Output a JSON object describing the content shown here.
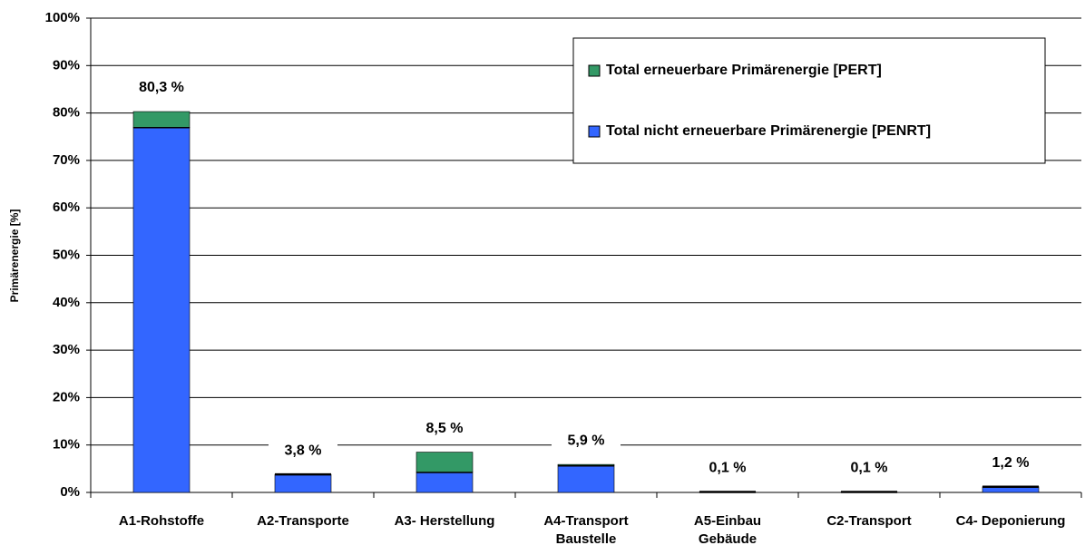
{
  "chart_data": {
    "type": "stacked_bar",
    "y_axis_label": "Primärenergie [%]",
    "categories": [
      "A1-Rohstoffe",
      "A2-Transporte",
      "A3- Herstellung",
      "A4-Transport Baustelle",
      "A5-Einbau Gebäude",
      "C2-Transport",
      "C4- Deponierung"
    ],
    "series": [
      {
        "name": "Total nicht erneuerbare Primärenergie [PENRT]",
        "color": "#3366ff",
        "values": [
          77.0,
          3.8,
          4.3,
          5.7,
          0.1,
          0.1,
          1.2
        ]
      },
      {
        "name": "Total erneuerbare Primärenergie [PERT]",
        "color": "#339966",
        "values": [
          3.3,
          0.0,
          4.2,
          0.2,
          0.0,
          0.0,
          0.0
        ]
      }
    ],
    "totals": [
      80.3,
      3.8,
      8.5,
      5.9,
      0.1,
      0.1,
      1.2
    ],
    "total_labels": [
      "80,3 %",
      "3,8 %",
      "8,5 %",
      "5,9 %",
      "0,1 %",
      "0,1 %",
      "1,2 %"
    ],
    "ylim": [
      0,
      100
    ],
    "yticks": [
      {
        "value": 0,
        "label": "0%"
      },
      {
        "value": 10,
        "label": "10%"
      },
      {
        "value": 20,
        "label": "20%"
      },
      {
        "value": 30,
        "label": "30%"
      },
      {
        "value": 40,
        "label": "40%"
      },
      {
        "value": 50,
        "label": "50%"
      },
      {
        "value": 60,
        "label": "60%"
      },
      {
        "value": 70,
        "label": "70%"
      },
      {
        "value": 80,
        "label": "80%"
      },
      {
        "value": 90,
        "label": "90%"
      },
      {
        "value": 100,
        "label": "100%"
      }
    ],
    "grid": true,
    "legend": "top-right"
  }
}
